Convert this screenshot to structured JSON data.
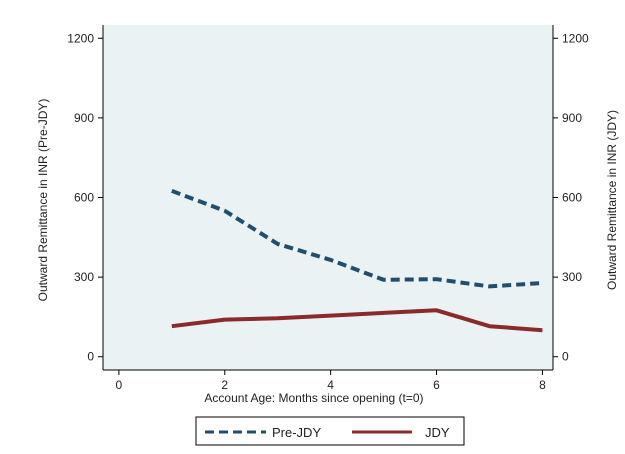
{
  "chart_data": {
    "type": "line",
    "xlabel": "Account Age: Months since opening (t=0)",
    "ylabel_left": "Outward Remittance in INR (Pre-JDY)",
    "ylabel_right": "Outward Remittance in INR (JDY)",
    "xlim": [
      -0.3,
      8.2
    ],
    "ylim": [
      -50,
      1250
    ],
    "x_ticks": [
      0,
      2,
      4,
      6,
      8
    ],
    "y_ticks": [
      0,
      300,
      600,
      900,
      1200
    ],
    "grid": false,
    "legend_position": "bottom",
    "series": [
      {
        "name": "Pre-JDY",
        "style": "dashed",
        "color": "#1f4e6e",
        "x": [
          1,
          2,
          3,
          4,
          5,
          6,
          7,
          8
        ],
        "y": [
          625,
          550,
          425,
          365,
          290,
          292,
          265,
          278
        ]
      },
      {
        "name": "JDY",
        "style": "solid",
        "color": "#8b2a2a",
        "x": [
          1,
          2,
          3,
          4,
          5,
          6,
          7,
          8
        ],
        "y": [
          115,
          140,
          145,
          155,
          165,
          175,
          115,
          100
        ]
      }
    ]
  },
  "colors": {
    "background": "#ffffff",
    "plot_background": "#eaf2f3",
    "axis": "#000000"
  }
}
